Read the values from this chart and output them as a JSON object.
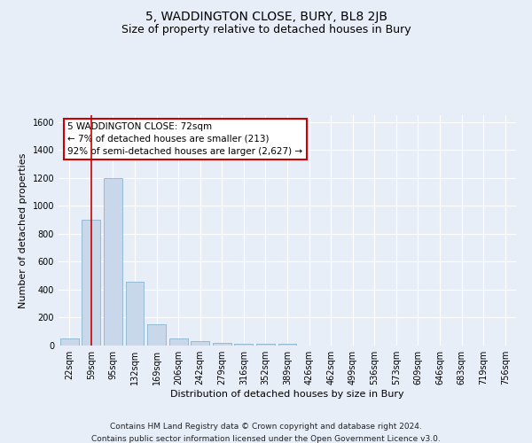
{
  "title": "5, WADDINGTON CLOSE, BURY, BL8 2JB",
  "subtitle": "Size of property relative to detached houses in Bury",
  "xlabel": "Distribution of detached houses by size in Bury",
  "ylabel": "Number of detached properties",
  "footer_line1": "Contains HM Land Registry data © Crown copyright and database right 2024.",
  "footer_line2": "Contains public sector information licensed under the Open Government Licence v3.0.",
  "bin_labels": [
    "22sqm",
    "59sqm",
    "95sqm",
    "132sqm",
    "169sqm",
    "206sqm",
    "242sqm",
    "279sqm",
    "316sqm",
    "352sqm",
    "389sqm",
    "426sqm",
    "462sqm",
    "499sqm",
    "536sqm",
    "573sqm",
    "609sqm",
    "646sqm",
    "683sqm",
    "719sqm",
    "756sqm"
  ],
  "bar_values": [
    50,
    900,
    1200,
    460,
    150,
    50,
    30,
    20,
    15,
    15,
    15,
    0,
    0,
    0,
    0,
    0,
    0,
    0,
    0,
    0,
    0
  ],
  "bar_color": "#c8d8ea",
  "bar_edgecolor": "#7aaac8",
  "ylim": [
    0,
    1650
  ],
  "yticks": [
    0,
    200,
    400,
    600,
    800,
    1000,
    1200,
    1400,
    1600
  ],
  "annotation_box_text": "5 WADDINGTON CLOSE: 72sqm\n← 7% of detached houses are smaller (213)\n92% of semi-detached houses are larger (2,627) →",
  "annotation_box_color": "#ffffff",
  "annotation_box_edgecolor": "#cc0000",
  "property_line_color": "#cc0000",
  "background_color": "#e8eef8",
  "plot_background": "#e8eef8",
  "grid_color": "#ffffff",
  "title_fontsize": 10,
  "subtitle_fontsize": 9,
  "annotation_fontsize": 7.5,
  "tick_fontsize": 7,
  "label_fontsize": 8,
  "footer_fontsize": 6.5
}
